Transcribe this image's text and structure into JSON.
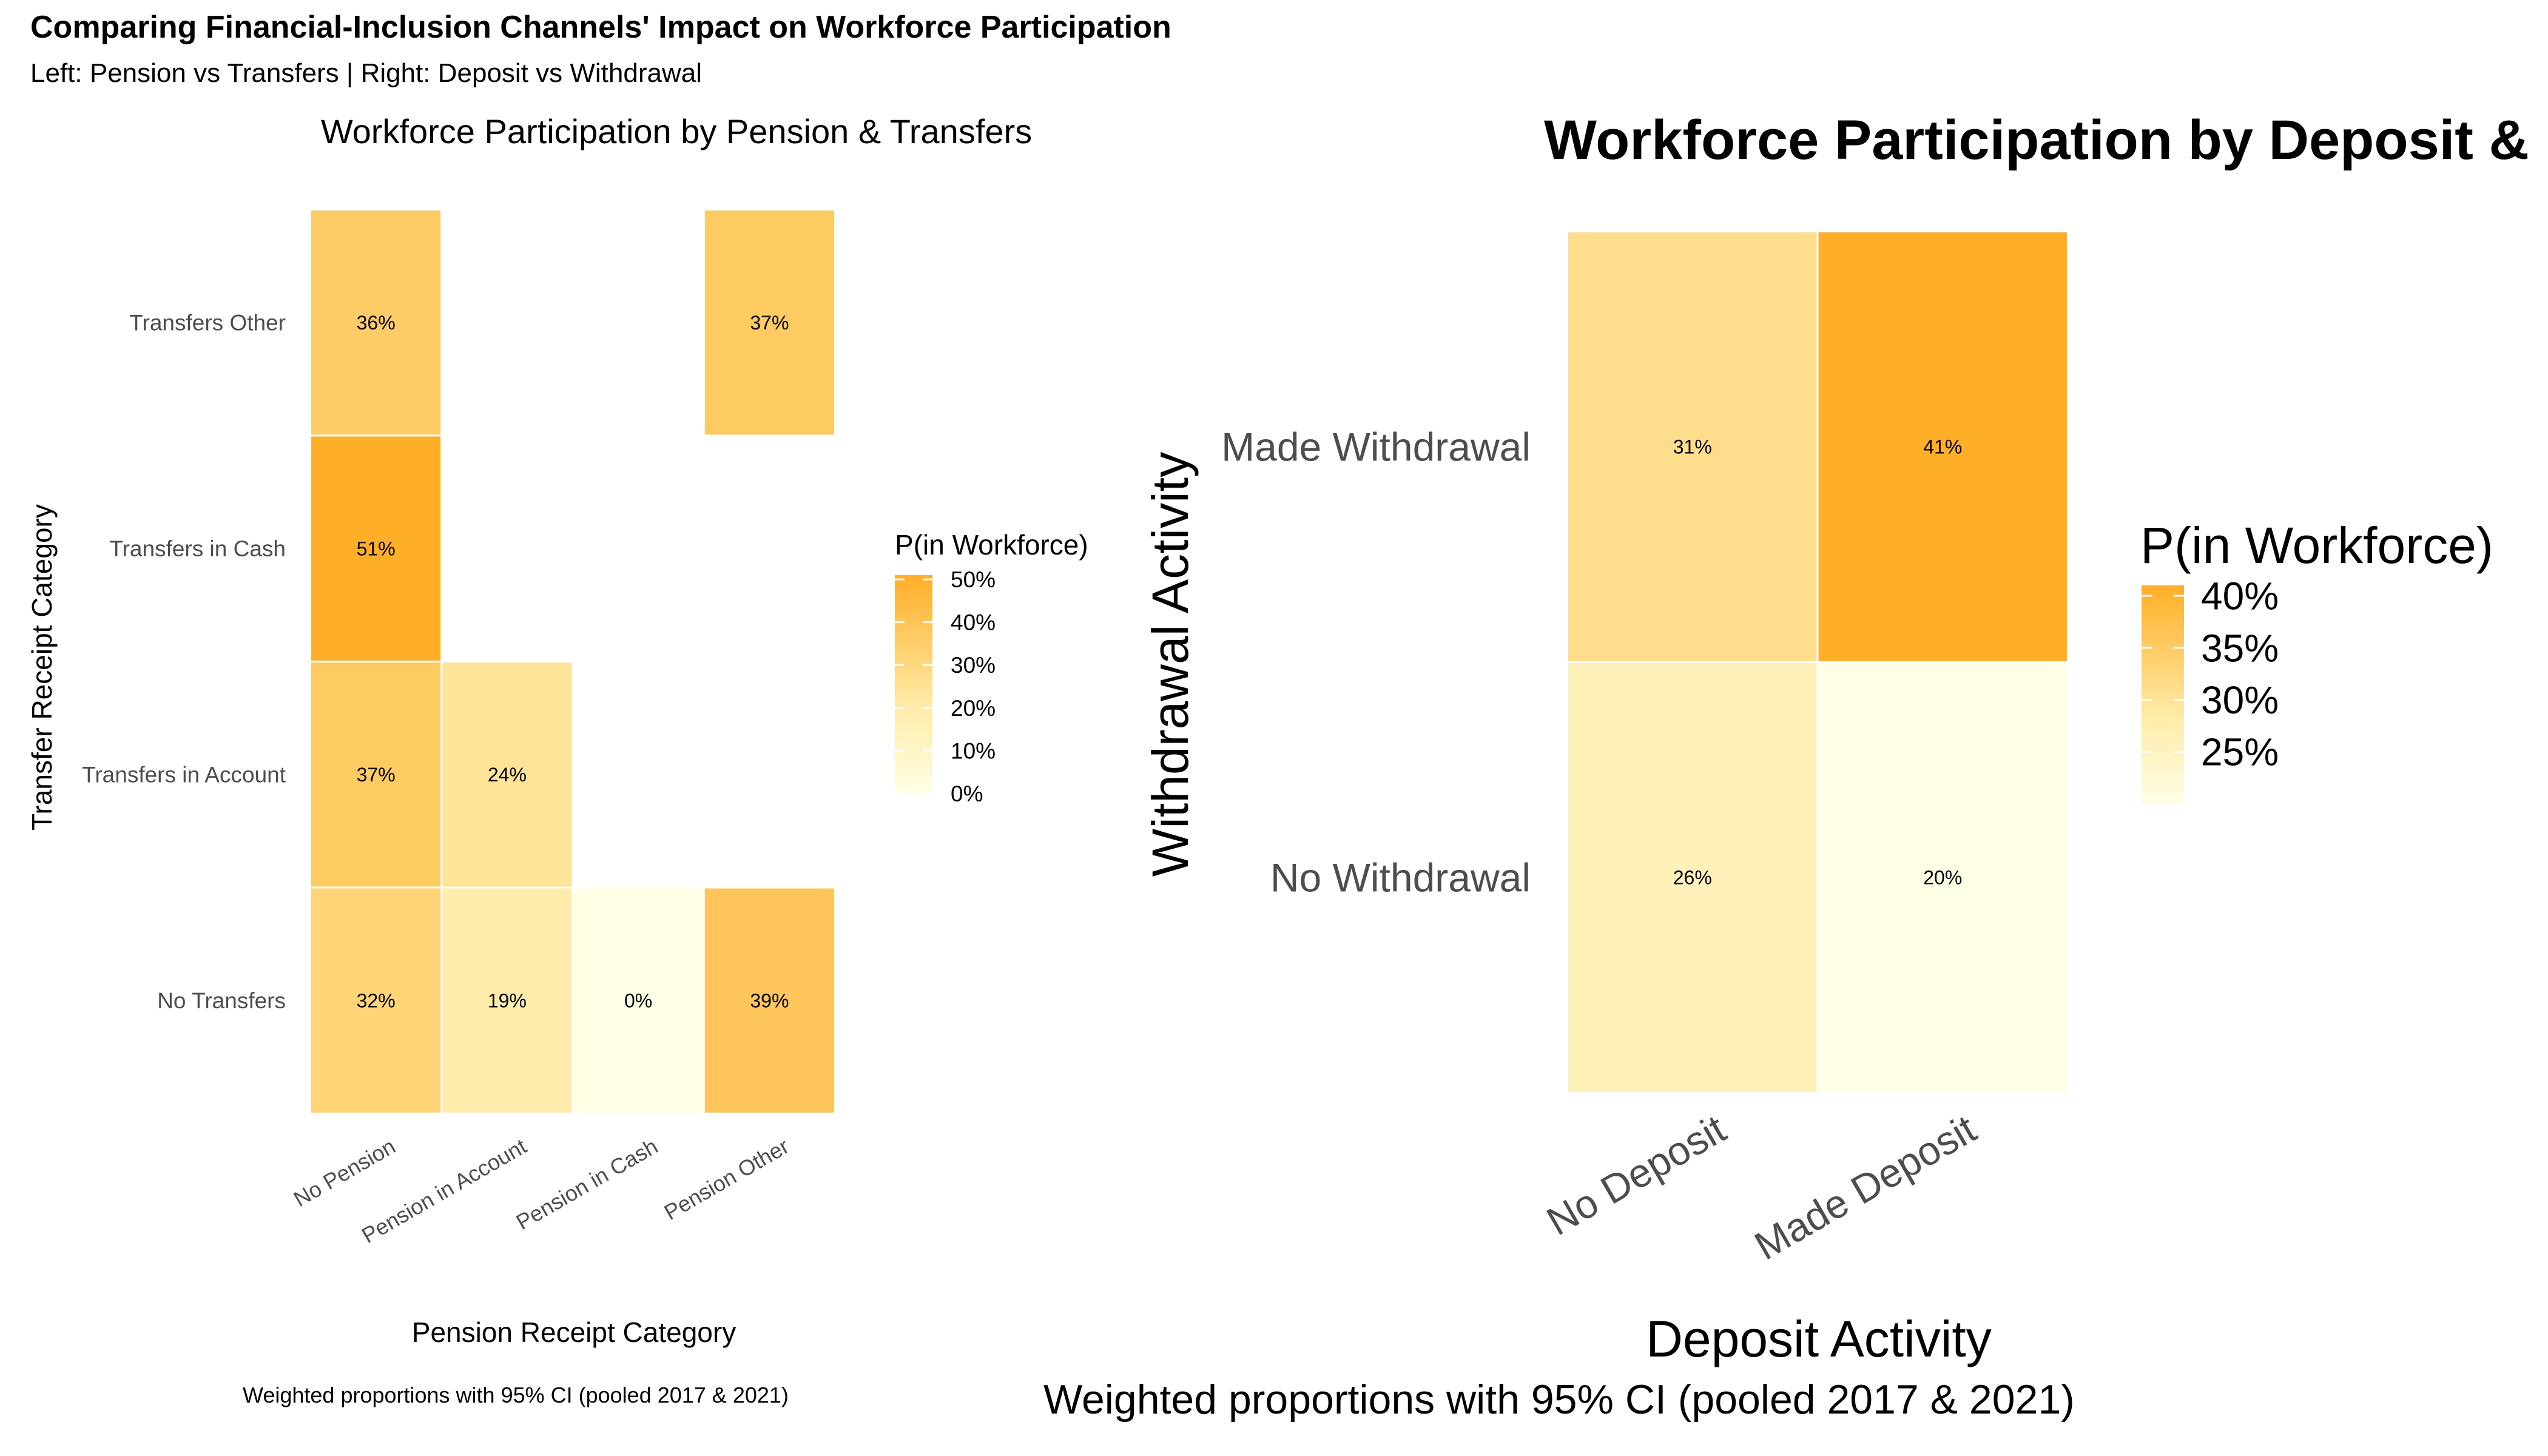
{
  "figure": {
    "title": "Comparing Financial-Inclusion Channels' Impact on Workforce Participation",
    "subtitle": "Left: Pension vs Transfers | Right: Deposit vs Withdrawal"
  },
  "chart_data": [
    {
      "type": "heatmap",
      "title": "Workforce Participation by Pension & Transfers",
      "xlabel": "Pension Receipt Category",
      "ylabel": "Transfer Receipt Category",
      "caption": "Weighted proportions with 95% CI (pooled 2017 & 2021)",
      "x": [
        "No Pension",
        "Pension in Account",
        "Pension in Cash",
        "Pension Other"
      ],
      "y": [
        "No Transfers",
        "Transfers in Account",
        "Transfers in Cash",
        "Transfers Other"
      ],
      "cells": [
        {
          "x": "No Pension",
          "y": "Transfers Other",
          "value": 0.36,
          "label": "36%"
        },
        {
          "x": "Pension Other",
          "y": "Transfers Other",
          "value": 0.37,
          "label": "37%"
        },
        {
          "x": "No Pension",
          "y": "Transfers in Cash",
          "value": 0.51,
          "label": "51%"
        },
        {
          "x": "No Pension",
          "y": "Transfers in Account",
          "value": 0.37,
          "label": "37%"
        },
        {
          "x": "Pension in Account",
          "y": "Transfers in Account",
          "value": 0.24,
          "label": "24%"
        },
        {
          "x": "No Pension",
          "y": "No Transfers",
          "value": 0.32,
          "label": "32%"
        },
        {
          "x": "Pension in Account",
          "y": "No Transfers",
          "value": 0.19,
          "label": "19%"
        },
        {
          "x": "Pension in Cash",
          "y": "No Transfers",
          "value": 0.0,
          "label": "0%"
        },
        {
          "x": "Pension Other",
          "y": "No Transfers",
          "value": 0.39,
          "label": "39%"
        }
      ],
      "legend": {
        "title": "P(in Workforce)",
        "range": [
          0,
          0.51
        ],
        "ticks": [
          0,
          0.1,
          0.2,
          0.3,
          0.4,
          0.5
        ],
        "tick_labels": [
          "0%",
          "10%",
          "20%",
          "30%",
          "40%",
          "50%"
        ],
        "low_color": "#FFFFE5",
        "high_color": "#FEAE27"
      }
    },
    {
      "type": "heatmap",
      "title": "Workforce Participation by Deposit &",
      "xlabel": "Deposit Activity",
      "ylabel": "Withdrawal Activity",
      "caption": "Weighted proportions with 95% CI (pooled 2017 & 2021)",
      "x": [
        "No Deposit",
        "Made Deposit"
      ],
      "y": [
        "No Withdrawal",
        "Made Withdrawal"
      ],
      "cells": [
        {
          "x": "No Deposit",
          "y": "Made Withdrawal",
          "value": 0.31,
          "label": "31%"
        },
        {
          "x": "Made Deposit",
          "y": "Made Withdrawal",
          "value": 0.41,
          "label": "41%"
        },
        {
          "x": "No Deposit",
          "y": "No Withdrawal",
          "value": 0.26,
          "label": "26%"
        },
        {
          "x": "Made Deposit",
          "y": "No Withdrawal",
          "value": 0.2,
          "label": "20%"
        }
      ],
      "legend": {
        "title": "P(in Workforce)",
        "range": [
          0.2,
          0.41
        ],
        "ticks": [
          0.25,
          0.3,
          0.35,
          0.4
        ],
        "tick_labels": [
          "25%",
          "30%",
          "35%",
          "40%"
        ],
        "low_color": "#FFFFE5",
        "high_color": "#FEAE27"
      }
    }
  ]
}
